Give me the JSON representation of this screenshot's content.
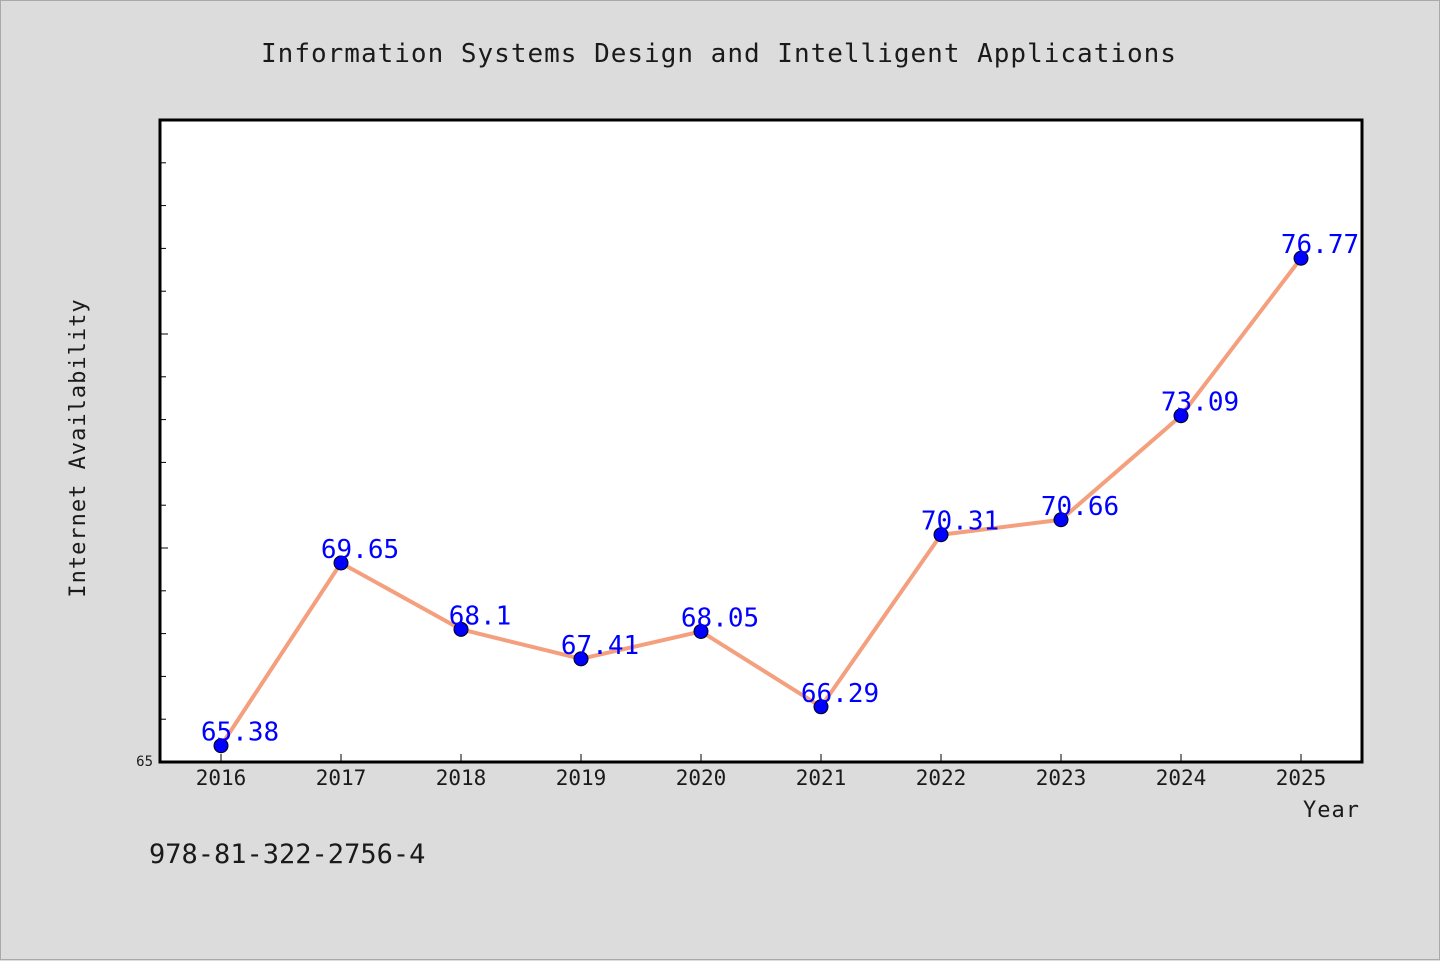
{
  "chart_data": {
    "type": "line",
    "title": "Information Systems Design and Intelligent Applications",
    "xlabel": "Year",
    "ylabel": "Internet Availability",
    "categories": [
      "2016",
      "2017",
      "2018",
      "2019",
      "2020",
      "2021",
      "2022",
      "2023",
      "2024",
      "2025"
    ],
    "series": [
      {
        "values": [
          65.38,
          69.65,
          68.1,
          67.41,
          68.05,
          66.29,
          70.31,
          70.66,
          73.09,
          76.77
        ],
        "labels": [
          "65.38",
          "69.65",
          "68.1",
          "67.41",
          "68.05",
          "66.29",
          "70.31",
          "70.66",
          "73.09",
          "76.77"
        ]
      }
    ],
    "ylim": [
      65,
      80
    ],
    "ytick_label": "65",
    "grid": false,
    "legend": "none",
    "colors": {
      "line": "#f4a07e",
      "marker": "#0000ff",
      "data_label": "#0000ff",
      "background": "#dcdcdc",
      "plot_background": "#ffffff"
    }
  },
  "footer": {
    "isbn": "978-81-322-2756-4"
  }
}
